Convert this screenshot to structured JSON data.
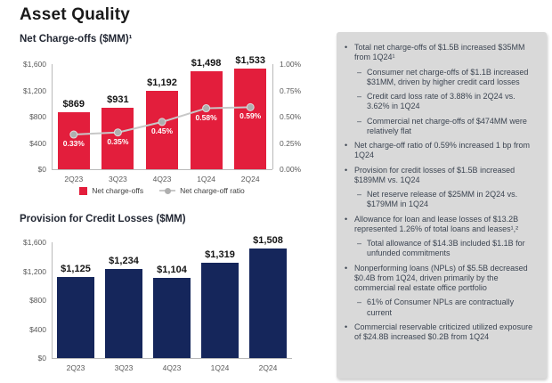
{
  "slide": {
    "title": "Asset Quality"
  },
  "colors": {
    "bar_red": "#e31e3c",
    "bar_navy": "#15265b",
    "ratio_line": "#c8c8c8",
    "ratio_marker": "#afafaf",
    "panel_gray": "#d9d9d9",
    "axis_text": "#595959",
    "bullet_text": "#3c4552"
  },
  "chart_data": [
    {
      "type": "bar",
      "title": "Net Charge-offs ($MM)¹",
      "categories": [
        "2Q23",
        "3Q23",
        "4Q23",
        "1Q24",
        "2Q24"
      ],
      "series": [
        {
          "name": "Net charge-offs",
          "chart": "bar",
          "axis": "left",
          "color": "#e31e3c",
          "values": [
            869,
            931,
            1192,
            1498,
            1533
          ],
          "data_labels": [
            "$869",
            "$931",
            "$1,192",
            "$1,498",
            "$1,533"
          ]
        },
        {
          "name": "Net charge-off ratio",
          "chart": "line",
          "axis": "right",
          "color": "#c8c8c8",
          "marker_color": "#afafaf",
          "values": [
            0.33,
            0.35,
            0.45,
            0.58,
            0.59
          ],
          "data_labels": [
            "0.33%",
            "0.35%",
            "0.45%",
            "0.58%",
            "0.59%"
          ]
        }
      ],
      "left_axis": {
        "min": 0,
        "max": 1600,
        "ticks": [
          "$0",
          "$400",
          "$800",
          "$1,200",
          "$1,600"
        ]
      },
      "right_axis": {
        "min": 0,
        "max": 1.0,
        "ticks": [
          "0.00%",
          "0.25%",
          "0.50%",
          "0.75%",
          "1.00%"
        ]
      },
      "grid": false,
      "legend_position": "bottom",
      "legend": [
        "Net charge-offs",
        "Net charge-off ratio"
      ]
    },
    {
      "type": "bar",
      "title": "Provision for Credit Losses ($MM)",
      "categories": [
        "2Q23",
        "3Q23",
        "4Q23",
        "1Q24",
        "2Q24"
      ],
      "series": [
        {
          "name": "Provision for credit losses",
          "chart": "bar",
          "axis": "left",
          "color": "#15265b",
          "values": [
            1125,
            1234,
            1104,
            1319,
            1508
          ],
          "data_labels": [
            "$1,125",
            "$1,234",
            "$1,104",
            "$1,319",
            "$1,508"
          ]
        }
      ],
      "left_axis": {
        "min": 0,
        "max": 1600,
        "ticks": [
          "$0",
          "$400",
          "$800",
          "$1,200",
          "$1,600"
        ]
      },
      "grid": false,
      "legend_position": "none"
    }
  ],
  "commentary": {
    "items": [
      {
        "level": 1,
        "text": "Total net charge-offs of $1.5B increased $35MM from 1Q24¹"
      },
      {
        "level": 2,
        "text": "Consumer net charge-offs of $1.1B increased $31MM, driven by higher credit card losses"
      },
      {
        "level": 2,
        "text": "Credit card loss rate of 3.88% in 2Q24 vs. 3.62% in 1Q24"
      },
      {
        "level": 2,
        "text": "Commercial net charge-offs of $474MM were relatively flat"
      },
      {
        "level": 1,
        "text": "Net charge-off ratio of 0.59% increased 1 bp from 1Q24"
      },
      {
        "level": 1,
        "text": "Provision for credit losses of $1.5B increased $189MM vs. 1Q24"
      },
      {
        "level": 2,
        "text": "Net reserve release of $25MM in 2Q24 vs. $179MM in 1Q24"
      },
      {
        "level": 1,
        "text": "Allowance for loan and lease losses of $13.2B represented 1.26% of total loans and leases¹,²"
      },
      {
        "level": 2,
        "text": "Total allowance of $14.3B included $1.1B for unfunded commitments"
      },
      {
        "level": 1,
        "text": "Nonperforming loans (NPLs) of $5.5B decreased $0.4B from 1Q24, driven primarily by the commercial real estate office portfolio"
      },
      {
        "level": 2,
        "text": "61% of Consumer NPLs are contractually current"
      },
      {
        "level": 1,
        "text": "Commercial reservable criticized utilized exposure of $24.8B increased $0.2B from 1Q24"
      }
    ]
  }
}
